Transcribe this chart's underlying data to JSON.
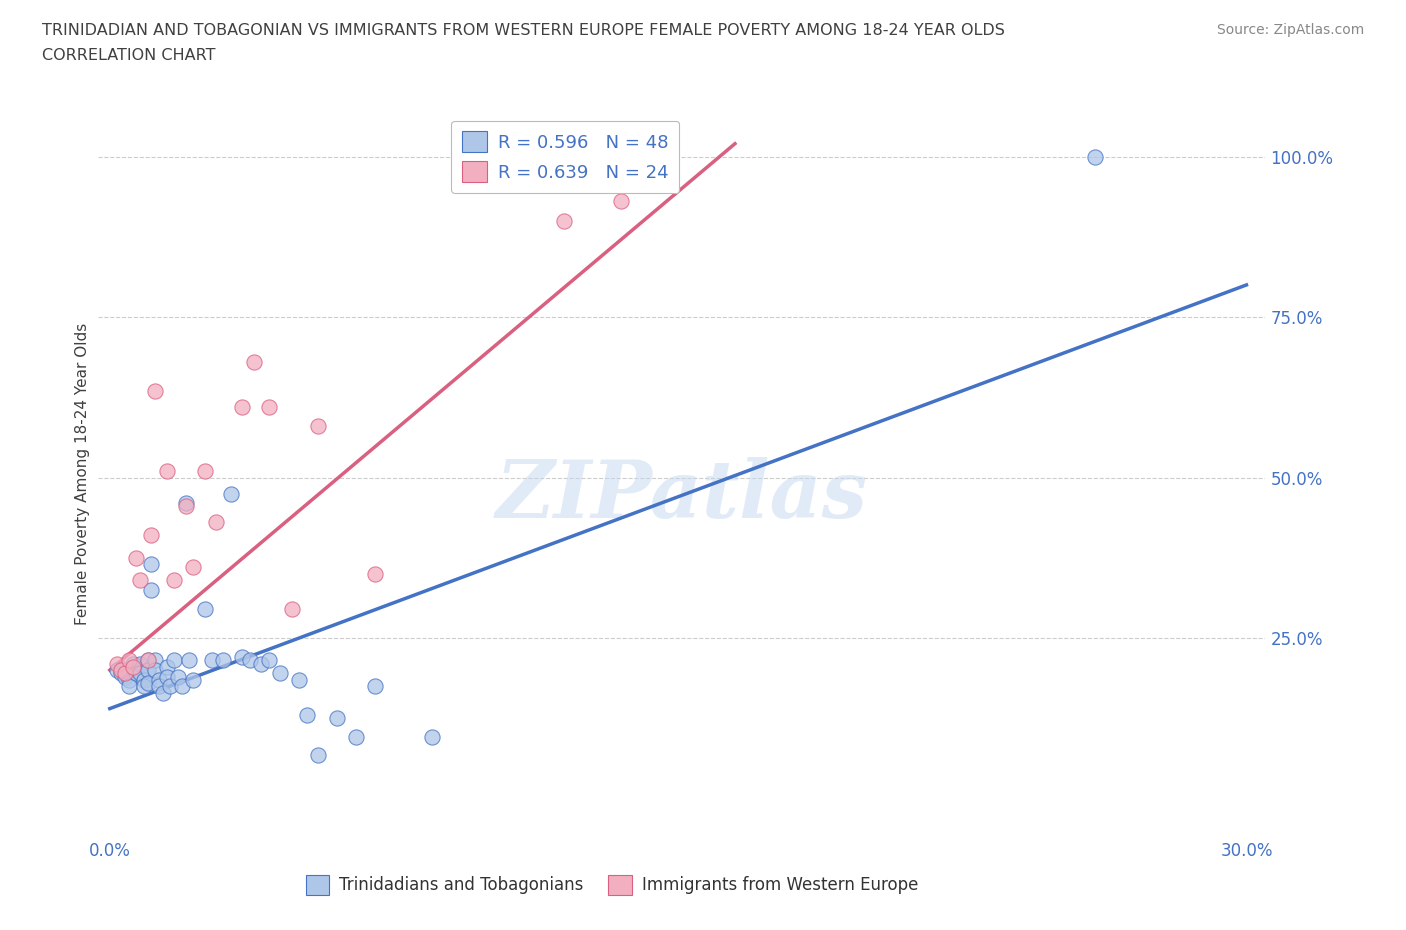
{
  "title_line1": "TRINIDADIAN AND TOBAGONIAN VS IMMIGRANTS FROM WESTERN EUROPE FEMALE POVERTY AMONG 18-24 YEAR OLDS",
  "title_line2": "CORRELATION CHART",
  "source": "Source: ZipAtlas.com",
  "ylabel": "Female Poverty Among 18-24 Year Olds",
  "xlim": [
    -0.003,
    0.305
  ],
  "ylim": [
    -0.06,
    1.07
  ],
  "xticks": [
    0.0,
    0.3
  ],
  "xticklabels": [
    "0.0%",
    "30.0%"
  ],
  "yticks": [
    0.25,
    0.5,
    0.75,
    1.0
  ],
  "yticklabels": [
    "25.0%",
    "50.0%",
    "75.0%",
    "100.0%"
  ],
  "blue_R": 0.596,
  "blue_N": 48,
  "pink_R": 0.639,
  "pink_N": 24,
  "blue_color": "#aec6e8",
  "pink_color": "#f2afc0",
  "blue_line_color": "#4472c4",
  "pink_line_color": "#d96080",
  "watermark": "ZIPatlas",
  "blue_scatter_x": [
    0.002,
    0.003,
    0.004,
    0.005,
    0.005,
    0.006,
    0.007,
    0.007,
    0.008,
    0.008,
    0.009,
    0.009,
    0.01,
    0.01,
    0.01,
    0.011,
    0.011,
    0.012,
    0.012,
    0.013,
    0.013,
    0.014,
    0.015,
    0.015,
    0.016,
    0.017,
    0.018,
    0.019,
    0.02,
    0.021,
    0.022,
    0.025,
    0.027,
    0.03,
    0.032,
    0.035,
    0.037,
    0.04,
    0.042,
    0.045,
    0.05,
    0.052,
    0.055,
    0.06,
    0.065,
    0.07,
    0.085,
    0.26
  ],
  "blue_scatter_y": [
    0.2,
    0.195,
    0.19,
    0.185,
    0.175,
    0.21,
    0.2,
    0.195,
    0.21,
    0.195,
    0.185,
    0.175,
    0.215,
    0.2,
    0.18,
    0.365,
    0.325,
    0.215,
    0.2,
    0.185,
    0.175,
    0.165,
    0.205,
    0.19,
    0.175,
    0.215,
    0.19,
    0.175,
    0.46,
    0.215,
    0.185,
    0.295,
    0.215,
    0.215,
    0.475,
    0.22,
    0.215,
    0.21,
    0.215,
    0.195,
    0.185,
    0.13,
    0.068,
    0.125,
    0.096,
    0.175,
    0.095,
    1.0
  ],
  "pink_scatter_x": [
    0.002,
    0.003,
    0.004,
    0.005,
    0.006,
    0.007,
    0.008,
    0.01,
    0.011,
    0.012,
    0.015,
    0.017,
    0.02,
    0.022,
    0.025,
    0.028,
    0.035,
    0.038,
    0.042,
    0.048,
    0.055,
    0.07,
    0.12,
    0.135
  ],
  "pink_scatter_y": [
    0.21,
    0.2,
    0.195,
    0.215,
    0.205,
    0.375,
    0.34,
    0.215,
    0.41,
    0.635,
    0.51,
    0.34,
    0.455,
    0.36,
    0.51,
    0.43,
    0.61,
    0.68,
    0.61,
    0.295,
    0.58,
    0.35,
    0.9,
    0.93
  ],
  "blue_trend_x": [
    0.0,
    0.3
  ],
  "blue_trend_y": [
    0.14,
    0.8
  ],
  "pink_trend_x": [
    0.0,
    0.165
  ],
  "pink_trend_y": [
    0.2,
    1.02
  ],
  "grid_color": "#cccccc",
  "title_color": "#404040",
  "tick_label_color": "#4472c4",
  "legend_label_color": "#4472c4"
}
